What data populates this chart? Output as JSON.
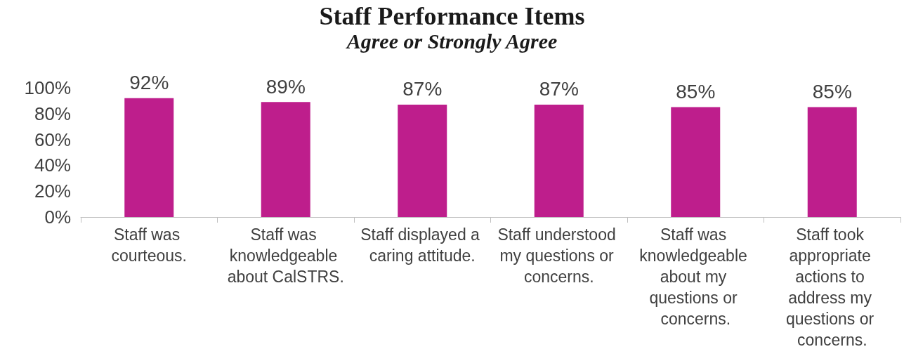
{
  "chart_data": {
    "type": "bar",
    "title": "Staff Performance Items",
    "subtitle": "Agree or Strongly Agree",
    "categories": [
      "Staff was courteous.",
      "Staff was knowledgeable about CalSTRS.",
      "Staff displayed a caring attitude.",
      "Staff understood my questions or concerns.",
      "Staff was knowledgeable about my questions or concerns.",
      "Staff took appropriate actions to address my questions or concerns."
    ],
    "values": [
      92,
      89,
      87,
      87,
      85,
      85
    ],
    "value_labels": [
      "92%",
      "89%",
      "87%",
      "87%",
      "85%",
      "85%"
    ],
    "color": "#be1e8c",
    "ylim": [
      0,
      100
    ],
    "yticks": [
      {
        "value": 0,
        "label": "0%"
      },
      {
        "value": 20,
        "label": "20%"
      },
      {
        "value": 40,
        "label": "40%"
      },
      {
        "value": 60,
        "label": "60%"
      },
      {
        "value": 80,
        "label": "80%"
      },
      {
        "value": 100,
        "label": "100%"
      }
    ],
    "grid": false
  }
}
